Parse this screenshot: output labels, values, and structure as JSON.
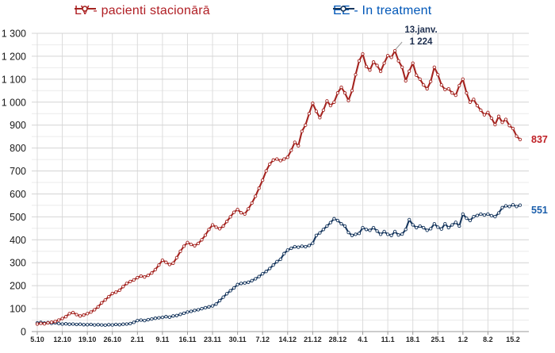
{
  "page": {
    "background": "#ffffff"
  },
  "legend": {
    "lv": {
      "label": "LV - pacienti stacionārā",
      "text_color": "#b01e24",
      "line_color": "#a42420"
    },
    "ee": {
      "label": "EE - In treatment",
      "text_color": "#0057b8",
      "line_color": "#17375e"
    }
  },
  "annotations": {
    "peak_date": "13.janv.",
    "peak_value": "1 224",
    "lv_end_label": "837",
    "ee_end_label": "551"
  },
  "chart_data": {
    "type": "line",
    "title": "",
    "xlabel": "",
    "ylabel": "",
    "ylim": [
      0,
      1300
    ],
    "y_major_step": 100,
    "y_minor_step": 50,
    "grid": true,
    "legend_position": "top",
    "y_tick_labels": [
      "0",
      "100",
      "200",
      "300",
      "400",
      "500",
      "600",
      "700",
      "800",
      "900",
      "1 000",
      "1 100",
      "1 200",
      "1 300"
    ],
    "x_tick_labels": [
      "5.10",
      "12.10",
      "19.10",
      "26.10",
      "2.11",
      "9.11",
      "16.11",
      "23.11",
      "30.11",
      "7.12",
      "14.12",
      "21.12",
      "28.12",
      "4.1",
      "11.1",
      "18.1",
      "25.1",
      "1.2",
      "8.2",
      "15.2"
    ],
    "days_per_tick": 7,
    "annotations": [
      {
        "text": "13.janv. 1 224",
        "series": "LV - pacienti stacionārā",
        "day_index": 100,
        "value": 1224
      }
    ],
    "series": [
      {
        "name": "LV - pacienti stacionārā",
        "color": "#a42420",
        "end_value": 837,
        "values": [
          33,
          36,
          34,
          38,
          41,
          44,
          50,
          57,
          65,
          78,
          83,
          74,
          68,
          72,
          78,
          85,
          95,
          108,
          125,
          138,
          152,
          166,
          172,
          180,
          196,
          210,
          218,
          225,
          235,
          242,
          238,
          245,
          255,
          270,
          290,
          311,
          302,
          292,
          298,
          322,
          350,
          372,
          388,
          380,
          374,
          384,
          400,
          420,
          445,
          465,
          455,
          448,
          460,
          480,
          500,
          520,
          532,
          518,
          512,
          535,
          560,
          590,
          625,
          660,
          700,
          730,
          748,
          752,
          745,
          752,
          760,
          790,
          825,
          810,
          873,
          900,
          950,
          995,
          960,
          932,
          965,
          1005,
          985,
          1000,
          1040,
          1065,
          1040,
          1007,
          1050,
          1120,
          1180,
          1210,
          1155,
          1140,
          1175,
          1160,
          1134,
          1170,
          1203,
          1195,
          1224,
          1180,
          1152,
          1093,
          1135,
          1170,
          1117,
          1100,
          1075,
          1058,
          1090,
          1152,
          1120,
          1075,
          1055,
          1058,
          1040,
          1030,
          1072,
          1100,
          1040,
          1000,
          1012,
          985,
          965,
          945,
          955,
          930,
          902,
          938,
          912,
          925,
          898,
          885,
          852,
          837
        ]
      },
      {
        "name": "EE - In treatment",
        "color": "#17375e",
        "end_value": 551,
        "values": [
          38,
          40,
          37,
          39,
          36,
          38,
          35,
          33,
          34,
          32,
          33,
          31,
          32,
          30,
          30,
          31,
          29,
          30,
          29,
          28,
          30,
          29,
          31,
          30,
          32,
          33,
          35,
          40,
          48,
          50,
          48,
          52,
          55,
          58,
          60,
          62,
          65,
          63,
          68,
          70,
          75,
          80,
          85,
          88,
          92,
          95,
          100,
          104,
          108,
          112,
          120,
          135,
          150,
          165,
          178,
          190,
          205,
          210,
          212,
          215,
          222,
          230,
          240,
          252,
          262,
          275,
          290,
          305,
          315,
          340,
          355,
          363,
          370,
          368,
          372,
          370,
          375,
          385,
          419,
          430,
          445,
          460,
          475,
          492,
          484,
          470,
          460,
          432,
          419,
          424,
          428,
          453,
          445,
          441,
          453,
          438,
          424,
          436,
          424,
          419,
          436,
          421,
          425,
          445,
          488,
          465,
          453,
          460,
          453,
          441,
          448,
          470,
          455,
          447,
          470,
          453,
          465,
          476,
          460,
          512,
          494,
          484,
          501,
          506,
          512,
          508,
          512,
          505,
          501,
          517,
          540,
          548,
          545,
          553,
          545,
          551
        ]
      }
    ]
  }
}
